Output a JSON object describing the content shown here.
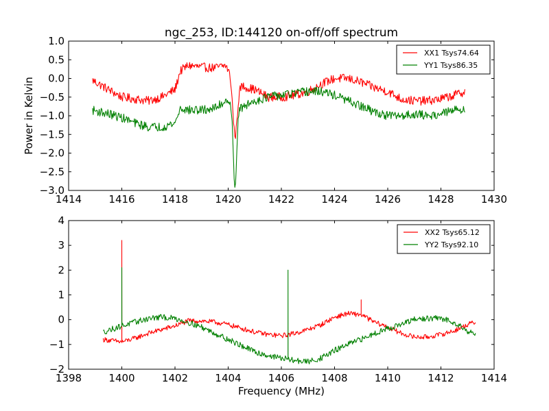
{
  "figure": {
    "title": "ngc_253, ID:144120 on-off/off spectrum"
  },
  "chart_data": [
    {
      "type": "line",
      "title": "ngc_253, ID:144120 on-off/off spectrum",
      "xlabel": "",
      "ylabel": "Power in Kelvin",
      "xlim": [
        1414,
        1430
      ],
      "ylim": [
        -3.0,
        1.0
      ],
      "xticks": [
        1414,
        1416,
        1418,
        1420,
        1422,
        1424,
        1426,
        1428,
        1430
      ],
      "xtick_labels": [
        "1414",
        "1416",
        "1418",
        "1420",
        "1422",
        "1424",
        "1426",
        "1428",
        "1430"
      ],
      "yticks": [
        -3.0,
        -2.5,
        -2.0,
        -1.5,
        -1.0,
        -0.5,
        0.0,
        0.5,
        1.0
      ],
      "ytick_labels": [
        "−3.0",
        "−2.5",
        "−2.0",
        "−1.5",
        "−1.0",
        "−0.5",
        "0.0",
        "0.5",
        "1.0"
      ],
      "grid": false,
      "legend_position": "top-right",
      "series": [
        {
          "name": "XX1 Tsys74.64",
          "color": "#ff0000",
          "x_range": [
            1414.9,
            1428.9
          ],
          "noise_amplitude": 0.12,
          "baseline": [
            [
              1414.9,
              -0.05
            ],
            [
              1415.5,
              -0.3
            ],
            [
              1416.0,
              -0.5
            ],
            [
              1416.5,
              -0.55
            ],
            [
              1417.0,
              -0.6
            ],
            [
              1417.5,
              -0.5
            ],
            [
              1418.0,
              -0.3
            ],
            [
              1418.2,
              0.2
            ],
            [
              1418.5,
              0.35
            ],
            [
              1419.0,
              0.3
            ],
            [
              1419.5,
              0.28
            ],
            [
              1419.9,
              0.35
            ],
            [
              1420.1,
              0.1
            ],
            [
              1420.3,
              -0.4
            ],
            [
              1420.5,
              -0.2
            ],
            [
              1421.0,
              -0.3
            ],
            [
              1421.5,
              -0.5
            ],
            [
              1422.0,
              -0.5
            ],
            [
              1422.5,
              -0.45
            ],
            [
              1423.0,
              -0.35
            ],
            [
              1423.5,
              -0.15
            ],
            [
              1424.0,
              0.0
            ],
            [
              1424.5,
              0.0
            ],
            [
              1425.0,
              -0.1
            ],
            [
              1425.5,
              -0.25
            ],
            [
              1426.0,
              -0.35
            ],
            [
              1426.5,
              -0.55
            ],
            [
              1427.0,
              -0.6
            ],
            [
              1427.5,
              -0.6
            ],
            [
              1428.0,
              -0.55
            ],
            [
              1428.5,
              -0.45
            ],
            [
              1428.9,
              -0.35
            ]
          ],
          "features": [
            {
              "kind": "absorption",
              "x": 1420.25,
              "peak": -1.5,
              "width": 0.08
            }
          ]
        },
        {
          "name": "YY1 Tsys86.35",
          "color": "#008000",
          "x_range": [
            1414.9,
            1428.9
          ],
          "noise_amplitude": 0.12,
          "baseline": [
            [
              1414.9,
              -0.85
            ],
            [
              1415.5,
              -0.95
            ],
            [
              1416.0,
              -1.05
            ],
            [
              1416.5,
              -1.2
            ],
            [
              1417.0,
              -1.3
            ],
            [
              1417.5,
              -1.3
            ],
            [
              1418.0,
              -1.2
            ],
            [
              1418.2,
              -0.8
            ],
            [
              1418.5,
              -0.85
            ],
            [
              1419.0,
              -0.85
            ],
            [
              1419.5,
              -0.8
            ],
            [
              1420.0,
              -0.55
            ],
            [
              1420.3,
              -0.9
            ],
            [
              1420.6,
              -0.75
            ],
            [
              1421.0,
              -0.6
            ],
            [
              1421.5,
              -0.5
            ],
            [
              1422.0,
              -0.45
            ],
            [
              1422.5,
              -0.4
            ],
            [
              1423.0,
              -0.35
            ],
            [
              1423.5,
              -0.35
            ],
            [
              1424.0,
              -0.45
            ],
            [
              1424.5,
              -0.6
            ],
            [
              1425.0,
              -0.75
            ],
            [
              1425.5,
              -0.9
            ],
            [
              1426.0,
              -1.0
            ],
            [
              1426.5,
              -1.0
            ],
            [
              1427.0,
              -0.95
            ],
            [
              1427.5,
              -1.0
            ],
            [
              1428.0,
              -0.95
            ],
            [
              1428.5,
              -0.85
            ],
            [
              1428.9,
              -0.8
            ]
          ],
          "features": [
            {
              "kind": "absorption",
              "x": 1420.25,
              "peak": -2.95,
              "width": 0.06
            }
          ]
        }
      ]
    },
    {
      "type": "line",
      "title": "",
      "xlabel": "Frequency (MHz)",
      "ylabel": "",
      "xlim": [
        1398,
        1414
      ],
      "ylim": [
        -2,
        4
      ],
      "xticks": [
        1398,
        1400,
        1402,
        1404,
        1406,
        1408,
        1410,
        1412,
        1414
      ],
      "xtick_labels": [
        "1398",
        "1400",
        "1402",
        "1404",
        "1406",
        "1408",
        "1410",
        "1412",
        "1414"
      ],
      "yticks": [
        -2,
        -1,
        0,
        1,
        2,
        3,
        4
      ],
      "ytick_labels": [
        "−2",
        "−1",
        "0",
        "1",
        "2",
        "3",
        "4"
      ],
      "grid": false,
      "legend_position": "top-right",
      "series": [
        {
          "name": "XX2 Tsys65.12",
          "color": "#ff0000",
          "x_range": [
            1399.3,
            1413.3
          ],
          "noise_amplitude": 0.1,
          "baseline": [
            [
              1399.3,
              -0.8
            ],
            [
              1400.0,
              -0.9
            ],
            [
              1400.5,
              -0.75
            ],
            [
              1401.0,
              -0.55
            ],
            [
              1401.5,
              -0.4
            ],
            [
              1402.0,
              -0.25
            ],
            [
              1402.5,
              -0.05
            ],
            [
              1403.0,
              -0.05
            ],
            [
              1403.5,
              -0.1
            ],
            [
              1404.0,
              -0.2
            ],
            [
              1404.5,
              -0.35
            ],
            [
              1405.0,
              -0.5
            ],
            [
              1405.5,
              -0.6
            ],
            [
              1406.0,
              -0.65
            ],
            [
              1406.5,
              -0.55
            ],
            [
              1407.0,
              -0.4
            ],
            [
              1407.5,
              -0.2
            ],
            [
              1408.0,
              0.1
            ],
            [
              1408.5,
              0.25
            ],
            [
              1409.0,
              0.2
            ],
            [
              1409.5,
              -0.1
            ],
            [
              1410.0,
              -0.3
            ],
            [
              1410.5,
              -0.55
            ],
            [
              1411.0,
              -0.7
            ],
            [
              1411.5,
              -0.7
            ],
            [
              1412.0,
              -0.6
            ],
            [
              1412.5,
              -0.45
            ],
            [
              1413.0,
              -0.2
            ],
            [
              1413.3,
              -0.1
            ]
          ],
          "features": [
            {
              "kind": "spike",
              "x": 1400.0,
              "peak": 3.2,
              "width": 0.02
            },
            {
              "kind": "spike",
              "x": 1409.0,
              "peak": 0.8,
              "width": 0.02
            }
          ]
        },
        {
          "name": "YY2 Tsys92.10",
          "color": "#008000",
          "x_range": [
            1399.3,
            1413.3
          ],
          "noise_amplitude": 0.12,
          "baseline": [
            [
              1399.3,
              -0.5
            ],
            [
              1400.0,
              -0.25
            ],
            [
              1400.5,
              -0.1
            ],
            [
              1401.0,
              0.05
            ],
            [
              1401.5,
              0.1
            ],
            [
              1402.0,
              0.05
            ],
            [
              1402.5,
              -0.1
            ],
            [
              1403.0,
              -0.3
            ],
            [
              1403.5,
              -0.55
            ],
            [
              1404.0,
              -0.8
            ],
            [
              1404.5,
              -1.05
            ],
            [
              1405.0,
              -1.3
            ],
            [
              1405.5,
              -1.45
            ],
            [
              1406.0,
              -1.55
            ],
            [
              1406.5,
              -1.65
            ],
            [
              1407.0,
              -1.7
            ],
            [
              1407.5,
              -1.55
            ],
            [
              1408.0,
              -1.25
            ],
            [
              1408.5,
              -1.0
            ],
            [
              1409.0,
              -0.8
            ],
            [
              1409.5,
              -0.55
            ],
            [
              1410.0,
              -0.35
            ],
            [
              1410.5,
              -0.2
            ],
            [
              1411.0,
              0.0
            ],
            [
              1411.5,
              0.05
            ],
            [
              1412.0,
              0.05
            ],
            [
              1412.5,
              -0.1
            ],
            [
              1413.0,
              -0.45
            ],
            [
              1413.3,
              -0.6
            ]
          ],
          "features": [
            {
              "kind": "spike",
              "x": 1400.0,
              "peak": 2.1,
              "width": 0.02
            },
            {
              "kind": "spike",
              "x": 1406.25,
              "peak": 2.0,
              "width": 0.02
            }
          ]
        }
      ]
    }
  ]
}
